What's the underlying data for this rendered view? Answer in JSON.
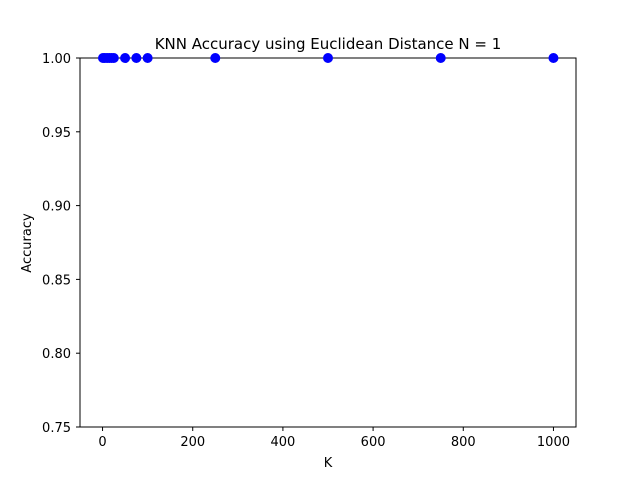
{
  "chart_data": {
    "type": "scatter",
    "title": "KNN Accuracy using Euclidean Distance N = 1",
    "xlabel": "K",
    "ylabel": "Accuracy",
    "xlim": [
      -50,
      1050
    ],
    "ylim": [
      0.75,
      1.0
    ],
    "x_ticks": [
      0,
      200,
      400,
      600,
      800,
      1000
    ],
    "y_ticks": [
      0.75,
      0.8,
      0.85,
      0.9,
      0.95,
      1.0
    ],
    "x_tick_labels": [
      "0",
      "200",
      "400",
      "600",
      "800",
      "1000"
    ],
    "y_tick_labels": [
      "0.75",
      "0.80",
      "0.85",
      "0.90",
      "0.95",
      "1.00"
    ],
    "grid": false,
    "series": [
      {
        "color": "#0000ff",
        "marker": "circle",
        "x": [
          1,
          5,
          10,
          15,
          20,
          25,
          50,
          75,
          100,
          250,
          500,
          750,
          1000
        ],
        "y": [
          1.0,
          1.0,
          1.0,
          1.0,
          1.0,
          1.0,
          1.0,
          1.0,
          1.0,
          1.0,
          1.0,
          1.0,
          1.0
        ]
      }
    ]
  }
}
